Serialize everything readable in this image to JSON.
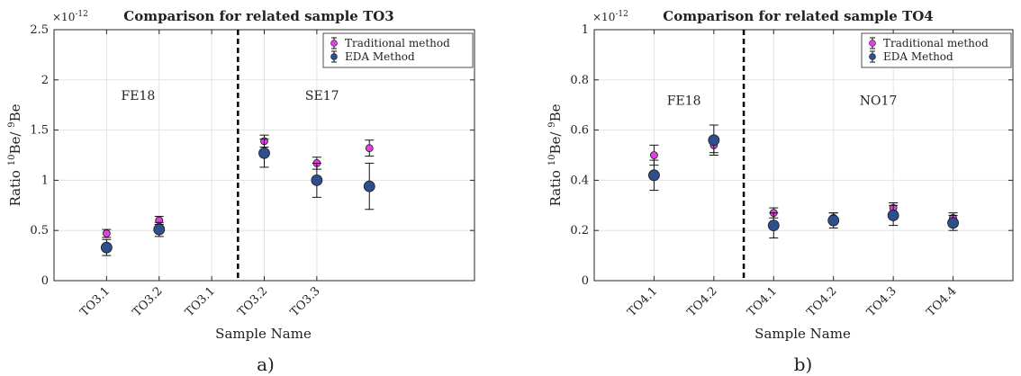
{
  "chart_data": [
    {
      "type": "scatter",
      "panel_label": "a)",
      "title": "Comparison for related sample TO3",
      "xlabel": "Sample Name",
      "ylabel": "Ratio",
      "ylabel_num": "10",
      "ylabel_be1": "Be/",
      "ylabel_den": "9",
      "ylabel_be2": "Be",
      "exponent_base": "×10",
      "exponent_pow": "-12",
      "categories": [
        "TO3.1",
        "TO3.2",
        "TO3.1",
        "TO3.2",
        "TO3.3"
      ],
      "ylim": [
        0,
        2.5
      ],
      "yticks": [
        0,
        0.5,
        1,
        1.5,
        2,
        2.5
      ],
      "ytick_labels": [
        "0",
        "0.5",
        "1",
        "1.5",
        "2",
        "2.5"
      ],
      "xlim": [
        0,
        8
      ],
      "grid": true,
      "legend_position": "top-right",
      "group_labels": [
        {
          "text": "FE18",
          "x": 1.6,
          "y": 1.8
        },
        {
          "text": "SE17",
          "x": 5.1,
          "y": 1.8
        }
      ],
      "divider_x": 3.5,
      "series": [
        {
          "name": "Traditional method",
          "color": "#e040e0",
          "x": [
            1,
            2,
            4,
            5,
            6
          ],
          "values": [
            0.47,
            0.6,
            1.39,
            1.17,
            1.32
          ],
          "errors": [
            0.04,
            0.04,
            0.06,
            0.06,
            0.08
          ]
        },
        {
          "name": "EDA Method",
          "color": "#2e4e8c",
          "x": [
            1,
            2,
            4,
            5,
            6
          ],
          "values": [
            0.33,
            0.51,
            1.27,
            1.0,
            0.94
          ],
          "errors": [
            0.08,
            0.07,
            0.14,
            0.17,
            0.23
          ]
        }
      ]
    },
    {
      "type": "scatter",
      "panel_label": "b)",
      "title": "Comparison for related sample TO4",
      "xlabel": "Sample Name",
      "ylabel": "Ratio",
      "ylabel_num": "10",
      "ylabel_be1": "Be/",
      "ylabel_den": "9",
      "ylabel_be2": "Be",
      "exponent_base": "×10",
      "exponent_pow": "-12",
      "categories": [
        "TO4.1",
        "TO4.2",
        "TO4.1",
        "TO4.2",
        "TO4.3",
        "TO4.4"
      ],
      "ylim": [
        0,
        1
      ],
      "yticks": [
        0,
        0.2,
        0.4,
        0.6,
        0.8,
        1
      ],
      "ytick_labels": [
        "0",
        "0.2",
        "0.4",
        "0.6",
        "0.8",
        "1"
      ],
      "xlim": [
        0,
        7
      ],
      "grid": true,
      "legend_position": "top-right",
      "group_labels": [
        {
          "text": "FE18",
          "x": 1.5,
          "y": 0.7
        },
        {
          "text": "NO17",
          "x": 4.75,
          "y": 0.7
        }
      ],
      "divider_x": 2.5,
      "series": [
        {
          "name": "Traditional method",
          "color": "#e040e0",
          "x": [
            1,
            2,
            3,
            4,
            5,
            6
          ],
          "values": [
            0.5,
            0.54,
            0.27,
            0.25,
            0.29,
            0.25
          ],
          "errors": [
            0.04,
            0.03,
            0.02,
            0.02,
            0.02,
            0.02
          ]
        },
        {
          "name": "EDA Method",
          "color": "#2e4e8c",
          "x": [
            1,
            2,
            3,
            4,
            5,
            6
          ],
          "values": [
            0.42,
            0.56,
            0.22,
            0.24,
            0.26,
            0.23
          ],
          "errors": [
            0.06,
            0.06,
            0.05,
            0.03,
            0.04,
            0.03
          ]
        }
      ]
    }
  ]
}
